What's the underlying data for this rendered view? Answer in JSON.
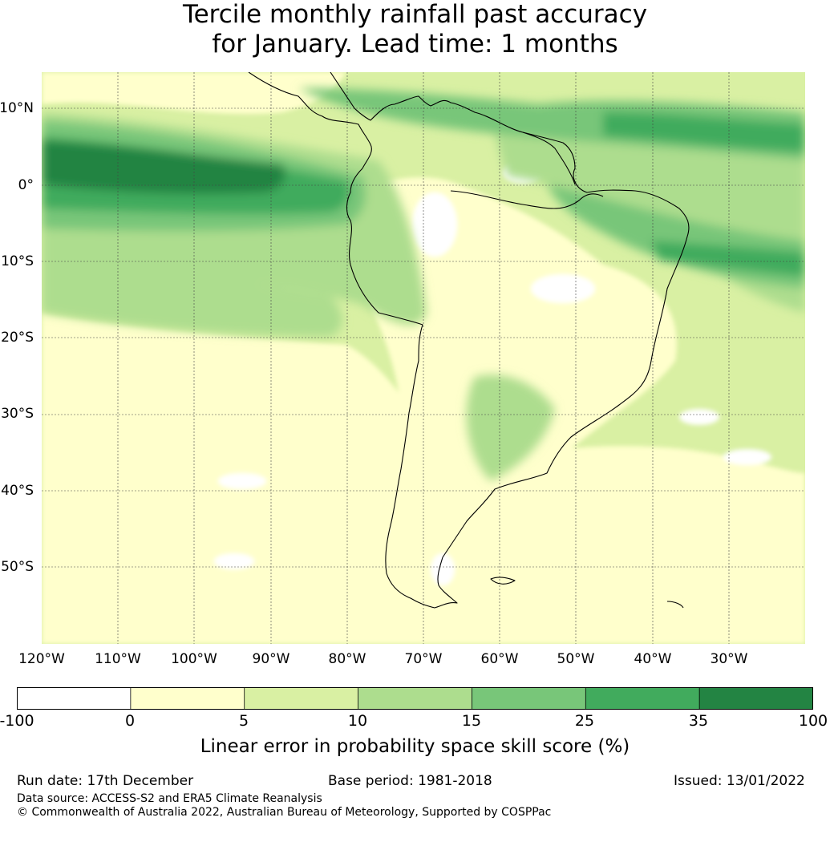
{
  "title": {
    "line1": "Tercile monthly rainfall past accuracy",
    "line2": "for January. Lead time: 1 months"
  },
  "map": {
    "lat_labels": [
      "10°N",
      "0°",
      "10°S",
      "20°S",
      "30°S",
      "40°S",
      "50°S"
    ],
    "lon_labels": [
      "120°W",
      "110°W",
      "100°W",
      "90°W",
      "80°W",
      "70°W",
      "60°W",
      "50°W",
      "40°W",
      "30°W"
    ],
    "extent_deg": {
      "lon_min": -120,
      "lon_max": -20,
      "lat_min": -60,
      "lat_max": 15
    },
    "region": "South America"
  },
  "colorbar": {
    "boundaries": [
      "-100",
      "0",
      "5",
      "10",
      "15",
      "25",
      "35",
      "100"
    ],
    "colors": [
      "#ffffff",
      "#ffffcc",
      "#d9f0a3",
      "#addd8e",
      "#78c679",
      "#41ab5d",
      "#238443"
    ],
    "label": "Linear error in probability space skill score (%)"
  },
  "footer": {
    "run_date": "Run date: 17th December",
    "base_period": "Base period: 1981-2018",
    "issued": "Issued: 13/01/2022",
    "data_source": "Data source: ACCESS-S2 and ERA5 Climate Reanalysis",
    "copyright": "© Commonwealth of Australia 2022, Australian Bureau of Meteorology, Supported by COSPPac"
  }
}
